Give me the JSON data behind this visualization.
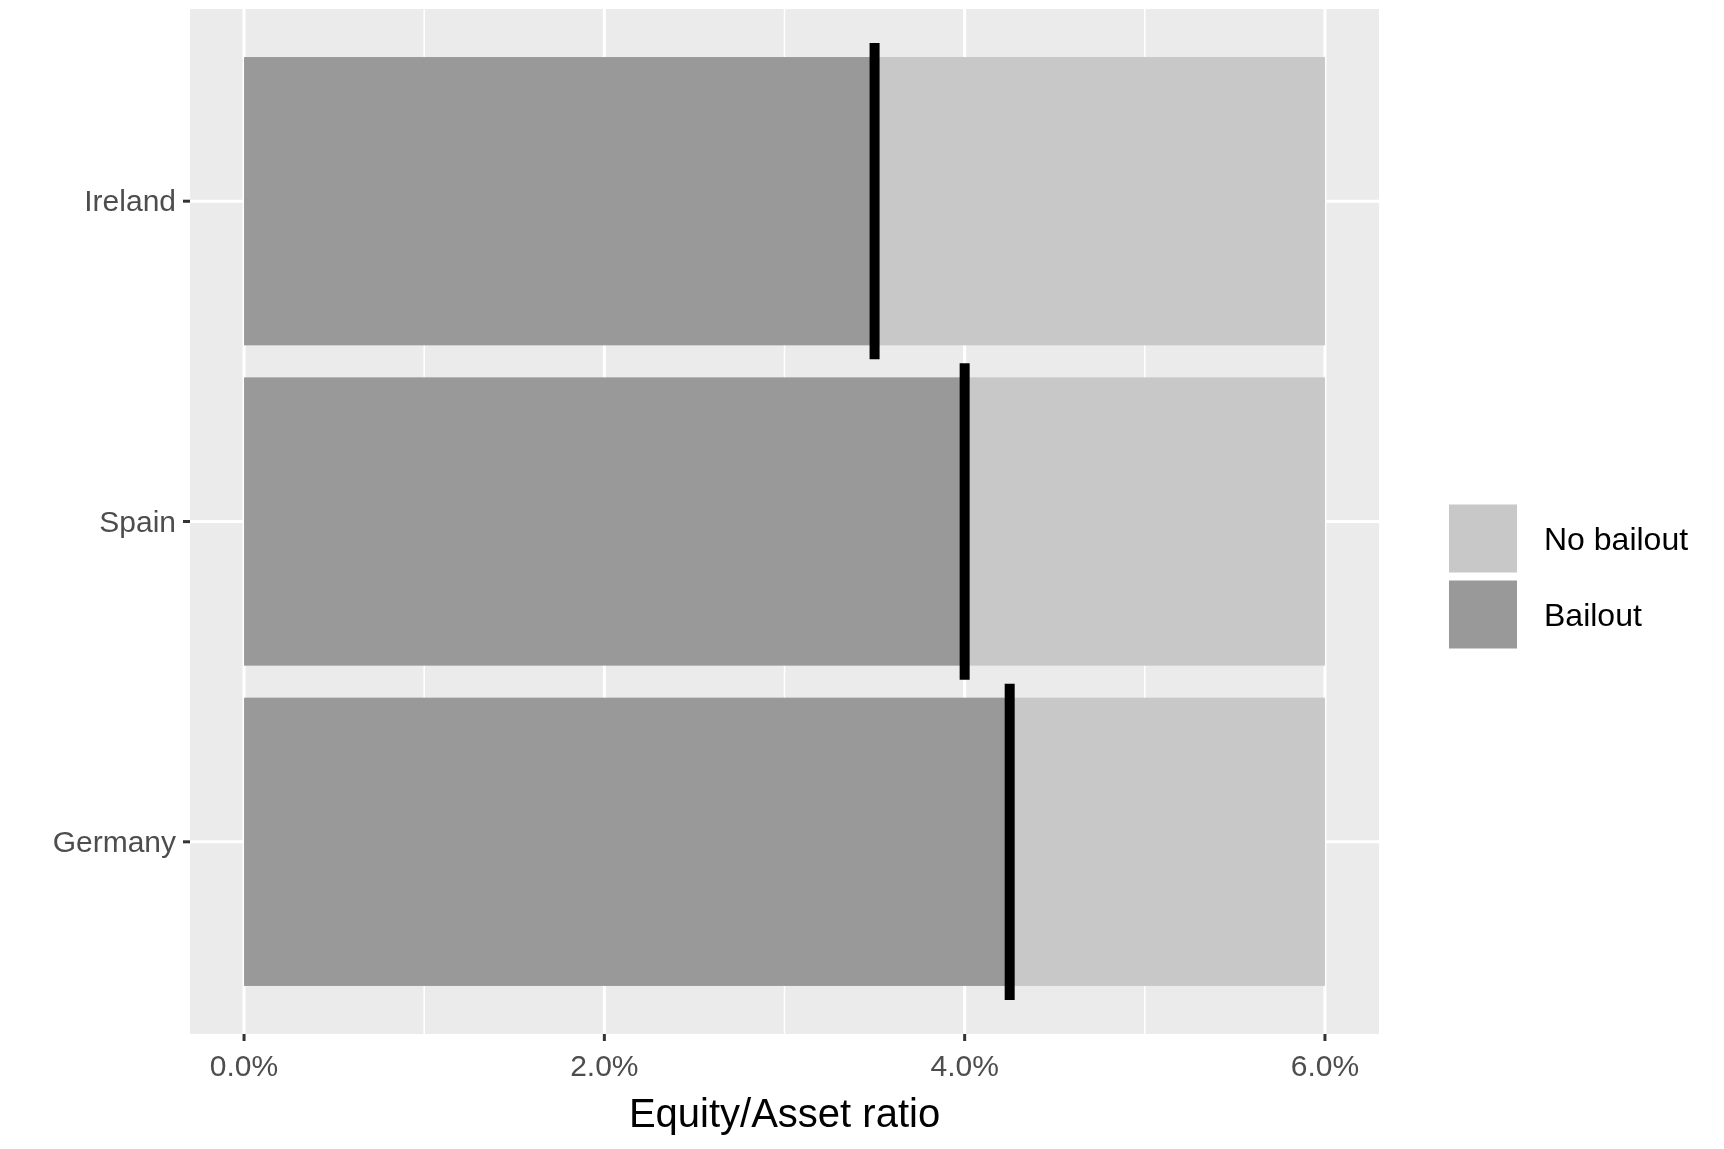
{
  "chart_data": {
    "type": "bar",
    "orientation": "horizontal",
    "stacked": true,
    "xlabel": "Equity/Asset ratio",
    "categories": [
      "Ireland",
      "Spain",
      "Germany"
    ],
    "series": [
      {
        "name": "Bailout",
        "color": "#999999",
        "values": [
          3.5,
          4.0,
          4.25
        ]
      },
      {
        "name": "No bailout",
        "color": "#c8c8c8",
        "values": [
          2.5,
          2.0,
          1.75
        ]
      },
      {
        "type": "box",
        "color": "#000000",
        "boxes": [
          {
            "low": 3.5,
            "q1": 3.5,
            "median": 3.5,
            "q3": 3.5,
            "high": 3.5
          },
          {
            "low": 4.0,
            "q1": 4.0,
            "median": 4.0,
            "q3": 4.0,
            "high": 4.0
          },
          {
            "low": 4.25,
            "q1": 4.25,
            "median": 4.25,
            "q3": 4.25,
            "high": 4.25
          }
        ]
      }
    ],
    "xlim": [
      -0.3,
      6.3
    ],
    "xticks": [
      {
        "value": 0,
        "label": "0.0%"
      },
      {
        "value": 1,
        "label": null
      },
      {
        "value": 2,
        "label": "2.0%"
      },
      {
        "value": 3,
        "label": null
      },
      {
        "value": 4,
        "label": "4.0%"
      },
      {
        "value": 5,
        "label": null
      },
      {
        "value": 6,
        "label": "6.0%"
      }
    ],
    "grid": true,
    "legend": "right"
  }
}
